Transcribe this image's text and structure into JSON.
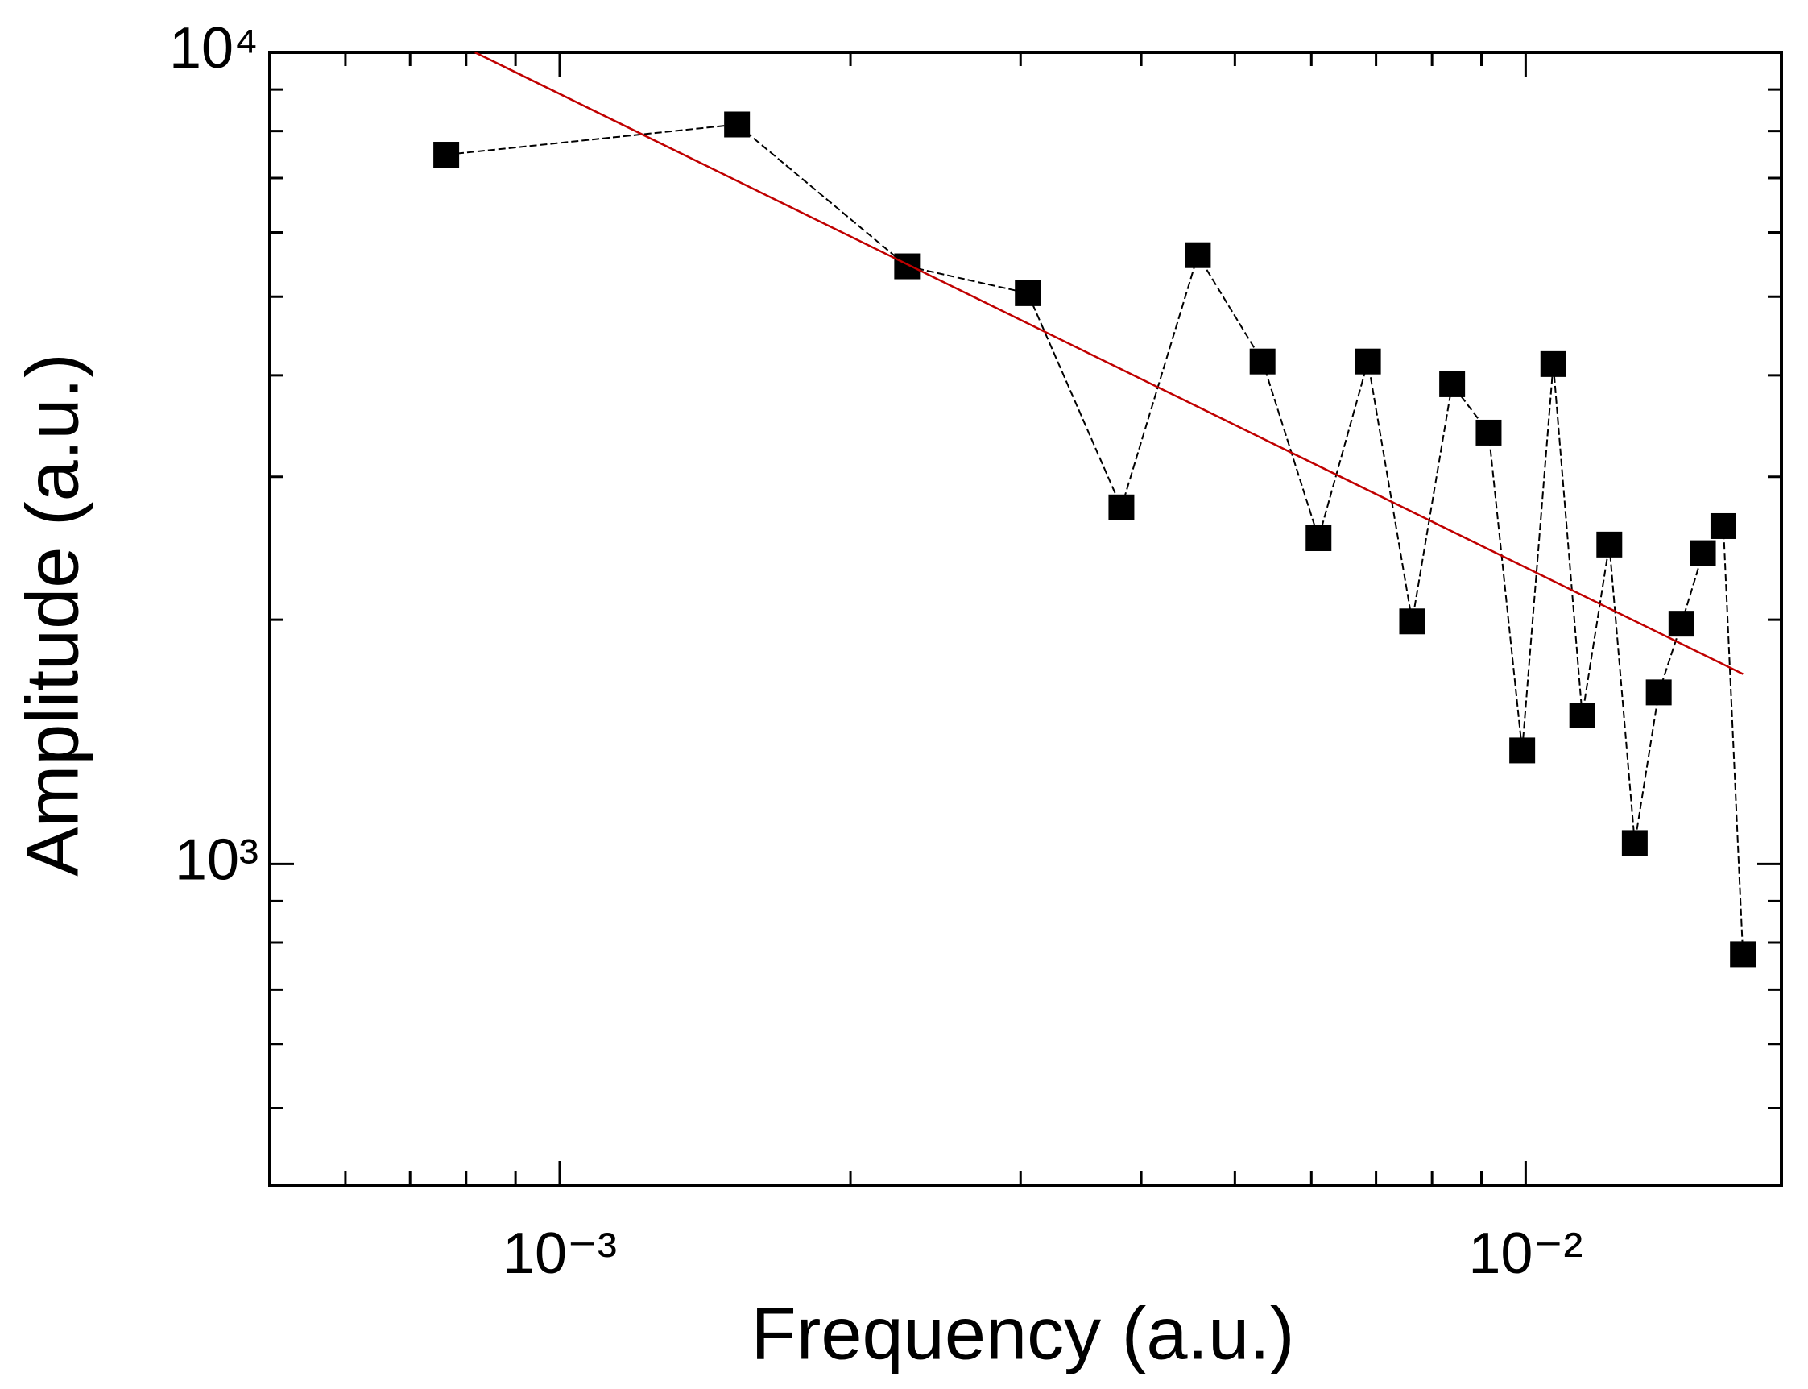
{
  "chart_data": {
    "type": "line",
    "xlabel": "Frequency (a.u.)",
    "ylabel": "Amplitude (a.u.)",
    "xscale": "log",
    "yscale": "log",
    "xlim": [
      0.000501,
      0.0184
    ],
    "ylim": [
      402,
      10000
    ],
    "xticks": [
      {
        "value": 0.001,
        "label": "10⁻³"
      },
      {
        "value": 0.01,
        "label": "10⁻²"
      }
    ],
    "yticks": [
      {
        "value": 1000,
        "label": "10³"
      },
      {
        "value": 10000,
        "label": "10⁴"
      }
    ],
    "xminor_ticks": [
      0.0006,
      0.0007,
      0.0008,
      0.0009,
      0.002,
      0.003,
      0.004,
      0.005,
      0.006,
      0.007,
      0.008,
      0.009
    ],
    "yminor_ticks": [
      500,
      600,
      700,
      800,
      900,
      2000,
      3000,
      4000,
      5000,
      6000,
      7000,
      8000,
      9000
    ],
    "grid": false,
    "series": [
      {
        "color": "#000000",
        "marker": "square",
        "dashed": true,
        "x": [
          0.000763,
          0.001526,
          0.002289,
          0.003052,
          0.003815,
          0.004578,
          0.005341,
          0.006104,
          0.006867,
          0.00763,
          0.008393,
          0.009156,
          0.009919,
          0.010682,
          0.011445,
          0.012208,
          0.012971,
          0.013734,
          0.014497,
          0.01526,
          0.016023,
          0.016786
        ],
        "values": [
          7480,
          8150,
          5450,
          5050,
          2750,
          5625,
          4160,
          2520,
          4160,
          1990,
          3900,
          3400,
          1380,
          4130,
          1524,
          2475,
          1061,
          1627,
          1977,
          2415,
          2608,
          774
        ]
      },
      {
        "color": "#c00000",
        "marker": "none",
        "dashed": false,
        "x": [
          0.000817,
          0.01679
        ],
        "values": [
          10000,
          1714
        ]
      }
    ]
  }
}
